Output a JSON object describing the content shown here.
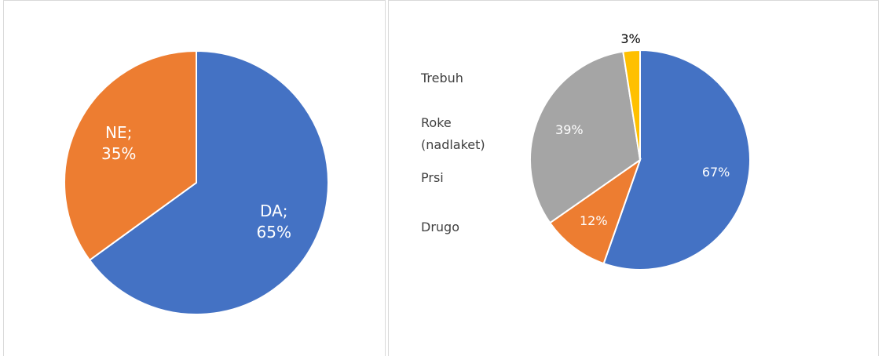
{
  "chart_data": [
    {
      "type": "pie",
      "values": [
        65,
        35
      ],
      "value_labels": [
        "DA; 65%",
        "NE; 35%"
      ],
      "colors": [
        "#4472c4",
        "#ed7d31"
      ]
    },
    {
      "type": "pie",
      "categories": [
        "Trebuh",
        "Roke (nadlaket)",
        "Prsi",
        "Drugo"
      ],
      "values": [
        67,
        12,
        39,
        3
      ],
      "value_labels": [
        "67%",
        "12%",
        "39%",
        "3%"
      ],
      "colors": [
        "#4472c4",
        "#ed7d31",
        "#a5a5a5",
        "#ffc000"
      ],
      "legend": "left"
    }
  ]
}
